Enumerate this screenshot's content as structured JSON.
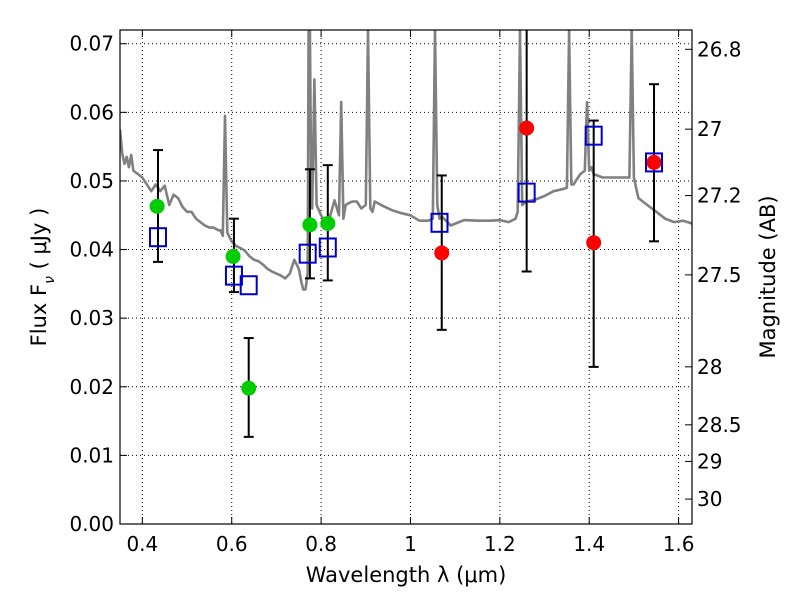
{
  "chart_data": {
    "type": "scatter",
    "xlabel": "Wavelength  λ (μm)",
    "ylabel": "Flux  F",
    "ylabel_subscript": "ν",
    "ylabel_units": " ( μJy )",
    "y2label": "Magnitude (AB)",
    "xlim": [
      0.35,
      1.63
    ],
    "ylim": [
      0.0,
      0.072
    ],
    "grid": true,
    "x_ticks": [
      0.4,
      0.6,
      0.8,
      1.0,
      1.2,
      1.4,
      1.6
    ],
    "x_tick_labels": [
      "0.4",
      "0.6",
      "0.8",
      "1",
      "1.2",
      "1.4",
      "1.6"
    ],
    "y_ticks": [
      0.0,
      0.01,
      0.02,
      0.03,
      0.04,
      0.05,
      0.06,
      0.07
    ],
    "y_tick_labels": [
      "0.00",
      "0.01",
      "0.02",
      "0.03",
      "0.04",
      "0.05",
      "0.06",
      "0.07"
    ],
    "y2_ticks": [
      26.8,
      27,
      27.2,
      27.5,
      28,
      28.5,
      29,
      30
    ],
    "y2_tick_labels": [
      "26.8",
      "27",
      "27.2",
      "27.5",
      "28",
      "28.5",
      "29",
      "30"
    ],
    "sed_model": {
      "name": "model SED",
      "color": "#808080",
      "x": [
        0.35,
        0.355,
        0.36,
        0.365,
        0.37,
        0.375,
        0.38,
        0.39,
        0.4,
        0.41,
        0.42,
        0.43,
        0.44,
        0.45,
        0.46,
        0.47,
        0.48,
        0.49,
        0.5,
        0.51,
        0.52,
        0.53,
        0.54,
        0.55,
        0.56,
        0.57,
        0.575,
        0.58,
        0.585,
        0.59,
        0.595,
        0.6,
        0.61,
        0.62,
        0.63,
        0.64,
        0.65,
        0.66,
        0.67,
        0.68,
        0.69,
        0.7,
        0.71,
        0.72,
        0.73,
        0.74,
        0.75,
        0.755,
        0.76,
        0.765,
        0.77,
        0.772,
        0.775,
        0.778,
        0.78,
        0.785,
        0.79,
        0.8,
        0.81,
        0.82,
        0.83,
        0.84,
        0.845,
        0.85,
        0.855,
        0.86,
        0.87,
        0.88,
        0.89,
        0.9,
        0.905,
        0.91,
        0.915,
        0.92,
        0.94,
        0.96,
        0.98,
        1.0,
        1.02,
        1.04,
        1.05,
        1.055,
        1.06,
        1.065,
        1.07,
        1.09,
        1.12,
        1.15,
        1.18,
        1.2,
        1.22,
        1.235,
        1.24,
        1.245,
        1.25,
        1.26,
        1.28,
        1.3,
        1.32,
        1.34,
        1.35,
        1.355,
        1.36,
        1.365,
        1.37,
        1.38,
        1.39,
        1.395,
        1.4,
        1.405,
        1.41,
        1.43,
        1.45,
        1.47,
        1.49,
        1.495,
        1.5,
        1.505,
        1.51,
        1.53,
        1.55,
        1.57,
        1.59,
        1.61,
        1.63
      ],
      "y": [
        0.0575,
        0.054,
        0.0525,
        0.0535,
        0.052,
        0.0538,
        0.0515,
        0.051,
        0.0505,
        0.0495,
        0.0485,
        0.0495,
        0.0485,
        0.0493,
        0.0465,
        0.048,
        0.0475,
        0.0462,
        0.0455,
        0.0455,
        0.0445,
        0.044,
        0.0435,
        0.0432,
        0.0432,
        0.0428,
        0.0428,
        0.042,
        0.0595,
        0.0425,
        0.0418,
        0.0412,
        0.0405,
        0.0402,
        0.0398,
        0.039,
        0.0385,
        0.0383,
        0.0378,
        0.0372,
        0.0368,
        0.0365,
        0.0362,
        0.0358,
        0.0365,
        0.0385,
        0.0372,
        0.0355,
        0.0342,
        0.0342,
        0.0365,
        0.072,
        0.072,
        0.047,
        0.046,
        0.0648,
        0.0465,
        0.045,
        0.044,
        0.0448,
        0.0472,
        0.045,
        0.0615,
        0.0445,
        0.0465,
        0.0467,
        0.047,
        0.047,
        0.046,
        0.0465,
        0.072,
        0.046,
        0.0455,
        0.047,
        0.0463,
        0.0457,
        0.0453,
        0.045,
        0.0442,
        0.0442,
        0.0445,
        0.072,
        0.0465,
        0.0445,
        0.0448,
        0.0435,
        0.0443,
        0.0442,
        0.0442,
        0.0443,
        0.044,
        0.0445,
        0.0455,
        0.072,
        0.0465,
        0.047,
        0.0473,
        0.0478,
        0.0485,
        0.0488,
        0.049,
        0.072,
        0.0495,
        0.0495,
        0.05,
        0.051,
        0.0515,
        0.0615,
        0.0515,
        0.052,
        0.051,
        0.0505,
        0.0505,
        0.0505,
        0.0505,
        0.072,
        0.0505,
        0.049,
        0.0475,
        0.0465,
        0.0455,
        0.0445,
        0.044,
        0.0442,
        0.0438
      ]
    },
    "observed_green": {
      "name": "observed (green)",
      "color": "#00cc00",
      "x": [
        0.433,
        0.603,
        0.638,
        0.775,
        0.815
      ],
      "y": [
        0.0463,
        0.039,
        0.0198,
        0.0436,
        0.0438
      ]
    },
    "observed_red": {
      "name": "observed (red)",
      "color": "#ff0000",
      "x": [
        1.07,
        1.26,
        1.41,
        1.545
      ],
      "y": [
        0.0395,
        0.0577,
        0.041,
        0.0527
      ]
    },
    "model_photometry": {
      "name": "model photometry",
      "color": "#0000cc",
      "x": [
        0.435,
        0.605,
        0.638,
        0.77,
        0.815,
        1.065,
        1.26,
        1.41,
        1.545
      ],
      "y": [
        0.0418,
        0.0362,
        0.0348,
        0.0394,
        0.0403,
        0.0439,
        0.0483,
        0.0566,
        0.0527
      ]
    },
    "error_bars": {
      "name": "error bars",
      "color": "#000000",
      "x": [
        0.435,
        0.605,
        0.638,
        0.775,
        0.815,
        1.07,
        1.26,
        1.41,
        1.545
      ],
      "y_low": [
        0.0382,
        0.0338,
        0.0127,
        0.0358,
        0.0355,
        0.0283,
        0.0368,
        0.0229,
        0.0412
      ],
      "y_high": [
        0.0545,
        0.0445,
        0.0271,
        0.0517,
        0.0523,
        0.0508,
        0.072,
        0.0588,
        0.0641
      ]
    }
  }
}
